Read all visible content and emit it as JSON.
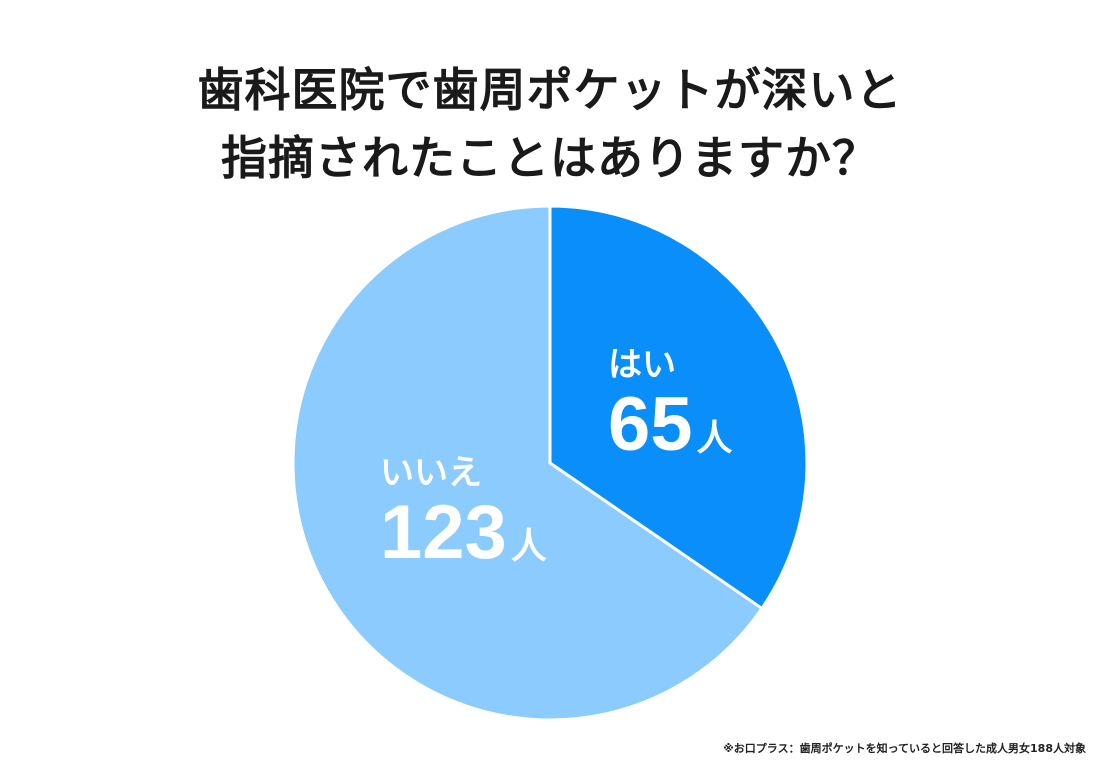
{
  "title": {
    "line1": "歯科医院で歯周ポケットが深いと",
    "line2": "指摘されたことはありますか？"
  },
  "chart_data": {
    "type": "pie",
    "slices": [
      {
        "label": "はい",
        "value": 65,
        "unit": "人",
        "color": "#0a8ffa"
      },
      {
        "label": "いいえ",
        "value": 123,
        "unit": "人",
        "color": "#8ccbfd"
      }
    ],
    "start": "12 o'clock",
    "direction": "clockwise"
  },
  "footnote": "※お口プラス：歯周ポケットを知っていると回答した成人男女188人対象"
}
